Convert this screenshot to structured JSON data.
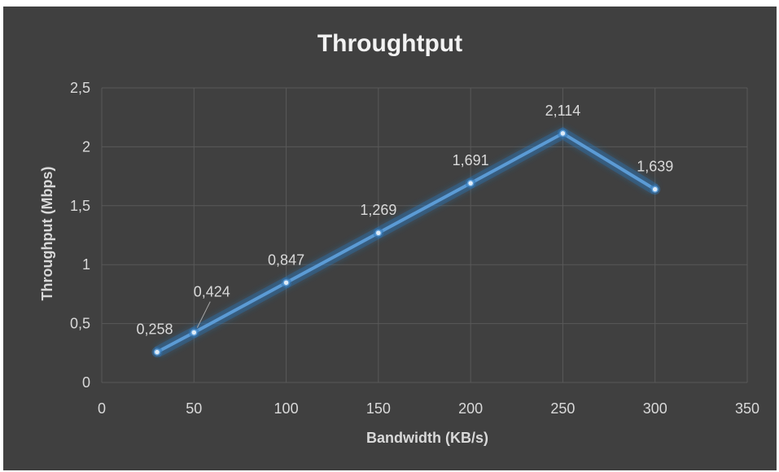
{
  "chart_data": {
    "type": "line",
    "title": "Throughtput",
    "xlabel": "Bandwidth (KB/s)",
    "ylabel": "Throughput (Mbps)",
    "xlim": [
      0,
      350
    ],
    "ylim": [
      0,
      2.5
    ],
    "x_ticks": [
      "0",
      "50",
      "100",
      "150",
      "200",
      "250",
      "300",
      "350"
    ],
    "y_ticks": [
      "0",
      "0,5",
      "1",
      "1,5",
      "2",
      "2,5"
    ],
    "grid": true,
    "legend": "none",
    "series": [
      {
        "x": [
          30,
          50,
          100,
          150,
          200,
          250,
          300
        ],
        "y": [
          0.258,
          0.424,
          0.847,
          1.269,
          1.691,
          2.114,
          1.639
        ],
        "labels": [
          "0,258",
          "0,424",
          "0,847",
          "1,269",
          "1,691",
          "2,114",
          "1,639"
        ],
        "color": "#5b9bd5"
      }
    ],
    "colors": {
      "background": "#404040",
      "gridline": "#595959",
      "text": "#d9d9d9",
      "title": "#f2f2f2",
      "line": "#5b9bd5",
      "glow": "#2f75b5"
    }
  }
}
